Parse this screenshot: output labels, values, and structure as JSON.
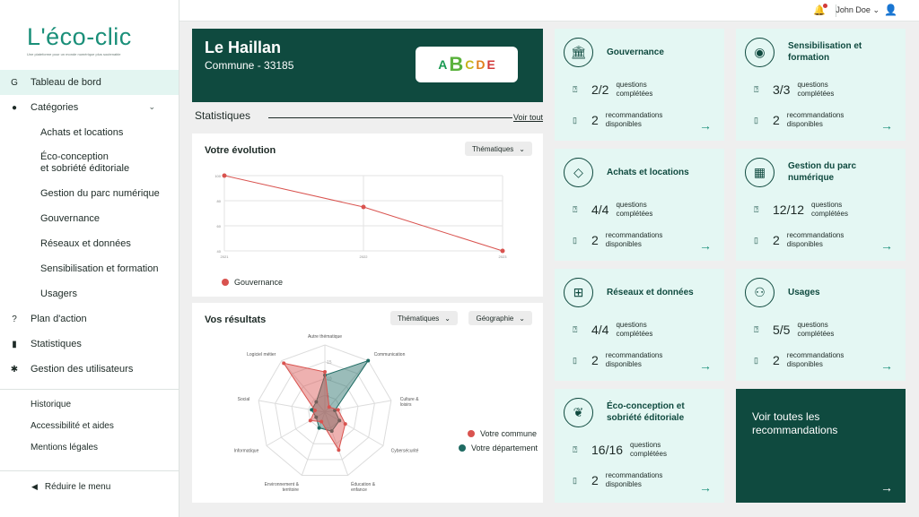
{
  "logo": {
    "text": "L'éco-clic",
    "tagline": "Une plateforme pour un monde numérique plus soutenable"
  },
  "topbar": {
    "user_name": "John Doe"
  },
  "sidebar": {
    "items": [
      {
        "label": "Tableau de bord",
        "icon": "dashboard-icon"
      },
      {
        "label": "Catégories",
        "icon": "categories-icon"
      },
      {
        "label": "Achats et locations"
      },
      {
        "label": "Éco-conception\net sobriété éditoriale"
      },
      {
        "label": "Gestion du parc numérique"
      },
      {
        "label": "Gouvernance"
      },
      {
        "label": "Réseaux et données"
      },
      {
        "label": "Sensibilisation et formation"
      },
      {
        "label": "Usagers"
      },
      {
        "label": "Plan d'action",
        "icon": "question-icon"
      },
      {
        "label": "Statistiques",
        "icon": "bar-chart-icon"
      },
      {
        "label": "Gestion des utilisateurs",
        "icon": "gear-icon"
      }
    ],
    "footer": [
      "Historique",
      "Accessibilité et aides",
      "Mentions légales"
    ],
    "reduce_label": "Réduire le menu"
  },
  "hero": {
    "title": "Le Haillan",
    "subtitle": "Commune - 33185",
    "grades": [
      "A",
      "B",
      "C",
      "D",
      "E"
    ],
    "active_grade": "B"
  },
  "stats": {
    "title": "Statistiques",
    "see_all": "Voir tout"
  },
  "evolution": {
    "title": "Votre évolution",
    "dropdown": "Thématiques"
  },
  "results": {
    "title": "Vos résultats",
    "dropdown1": "Thématiques",
    "dropdown2": "Géographie"
  },
  "chart_data": [
    {
      "type": "line",
      "title": "Votre évolution",
      "x": [
        "2021",
        "2022",
        "2023"
      ],
      "series": [
        {
          "name": "Gouvernance",
          "values": [
            100,
            75,
            40
          ]
        }
      ],
      "yticks": [
        40,
        60,
        80,
        100
      ],
      "ylim": [
        40,
        100
      ],
      "grid": true,
      "legend": "bottom-left",
      "color": "#d9534f"
    },
    {
      "type": "radar",
      "title": "Vos résultats",
      "categories": [
        "Autre thématique",
        "Communication",
        "Culture & loisirs",
        "Cybersécurité",
        "Éducation & enfance",
        "Environnement & territoire",
        "Informatique",
        "Social",
        "Logiciel métier"
      ],
      "ticks": [
        5,
        10,
        15
      ],
      "rmax": 20,
      "series": [
        {
          "name": "Votre commune",
          "values": [
            12,
            2,
            4,
            7,
            12,
            3,
            5,
            3,
            19
          ],
          "color": "#d9534f"
        },
        {
          "name": "Votre département",
          "values": [
            11,
            20,
            3,
            5,
            6,
            5,
            3,
            4,
            4
          ],
          "color": "#1f6b63"
        }
      ],
      "legend": "right"
    }
  ],
  "cards": [
    {
      "title": "Gouvernance",
      "icon": "bank-icon",
      "questions": "2/2",
      "q_label": "questions\ncomplétées",
      "recos": "2",
      "r_label": "recommandations\ndisponibles"
    },
    {
      "title": "Sensibilisation et formation",
      "icon": "broadcast-icon",
      "questions": "3/3",
      "q_label": "questions\ncomplétées",
      "recos": "2",
      "r_label": "recommandations\ndisponibles"
    },
    {
      "title": "Achats et locations",
      "icon": "tag-icon",
      "questions": "4/4",
      "q_label": "questions\ncomplétées",
      "recos": "2",
      "r_label": "recommandations\ndisponibles"
    },
    {
      "title": "Gestion du parc numérique",
      "icon": "grid-icon",
      "questions": "12/12",
      "q_label": "questions\ncomplétées",
      "recos": "2",
      "r_label": "recommandations\ndisponibles"
    },
    {
      "title": "Réseaux et données",
      "icon": "network-icon",
      "questions": "4/4",
      "q_label": "questions\ncomplétées",
      "recos": "2",
      "r_label": "recommandations\ndisponibles"
    },
    {
      "title": "Usages",
      "icon": "users-icon",
      "questions": "5/5",
      "q_label": "questions\ncomplétées",
      "recos": "2",
      "r_label": "recommandations\ndisponibles"
    },
    {
      "title": "Éco-conception et sobriété éditoriale",
      "icon": "leaf-icon",
      "questions": "16/16",
      "q_label": "questions\ncomplétées",
      "recos": "2",
      "r_label": "recommandations\ndisponibles"
    }
  ],
  "all_recos": "Voir toutes les recommandations"
}
